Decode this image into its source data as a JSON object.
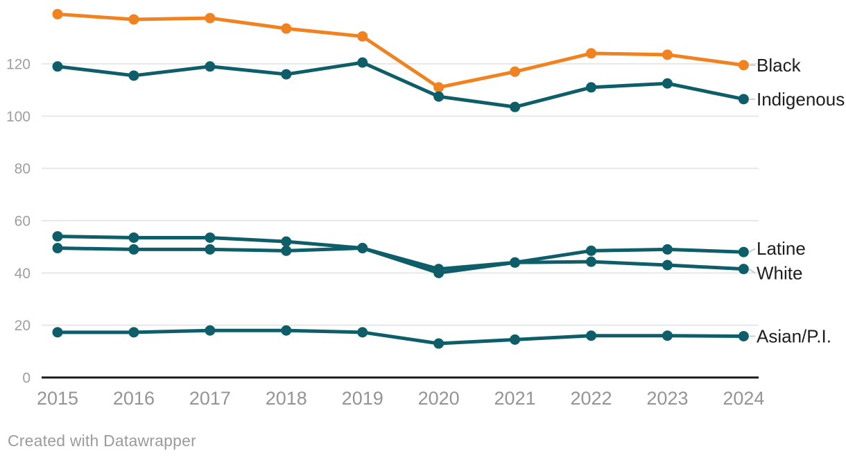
{
  "chart_data": {
    "type": "line",
    "title": "",
    "xlabel": "",
    "ylabel": "",
    "x": [
      2015,
      2016,
      2017,
      2018,
      2019,
      2020,
      2021,
      2022,
      2023,
      2024
    ],
    "series": [
      {
        "name": "Black",
        "color": "#F0821F",
        "label_dy": 0,
        "values": [
          139,
          137,
          137.5,
          133.5,
          130.5,
          111,
          117,
          124,
          123.5,
          119.5
        ]
      },
      {
        "name": "Indigenous",
        "color": "#0D5E69",
        "label_dy": 0,
        "values": [
          119,
          115.5,
          119,
          116,
          120.5,
          107.5,
          103.5,
          111,
          112.5,
          106.5
        ]
      },
      {
        "name": "Latine",
        "color": "#0D5E69",
        "label_dy": -5,
        "values": [
          54,
          53.5,
          53.5,
          52,
          49.5,
          41.5,
          44,
          48.5,
          49,
          48
        ]
      },
      {
        "name": "White",
        "color": "#0D5E69",
        "label_dy": 6,
        "values": [
          49.5,
          49,
          49,
          48.5,
          49.5,
          40,
          44,
          44.3,
          43,
          41.5
        ]
      },
      {
        "name": "Asian/P.I.",
        "color": "#0D5E69",
        "label_dy": 0,
        "values": [
          17.3,
          17.3,
          18,
          18,
          17.3,
          13,
          14.5,
          16,
          16,
          15.8
        ]
      }
    ],
    "y_ticks": [
      0,
      20,
      40,
      60,
      80,
      100,
      120
    ],
    "ylim": [
      0,
      142
    ],
    "grid": true,
    "legend_position": "line-end-labels-right",
    "style": {
      "grid_color": "#e8e8e8",
      "axis_color": "#1a1a1a",
      "y_tick_color": "#9e9e9e",
      "x_tick_color": "#949494",
      "series_label_color": "#1d1d1d",
      "connector_color": "#cccccc",
      "line_width": 5,
      "point_radius": 7.5
    }
  },
  "footer": {
    "credit": "Created with Datawrapper",
    "credit_color": "#9b9b9b"
  }
}
